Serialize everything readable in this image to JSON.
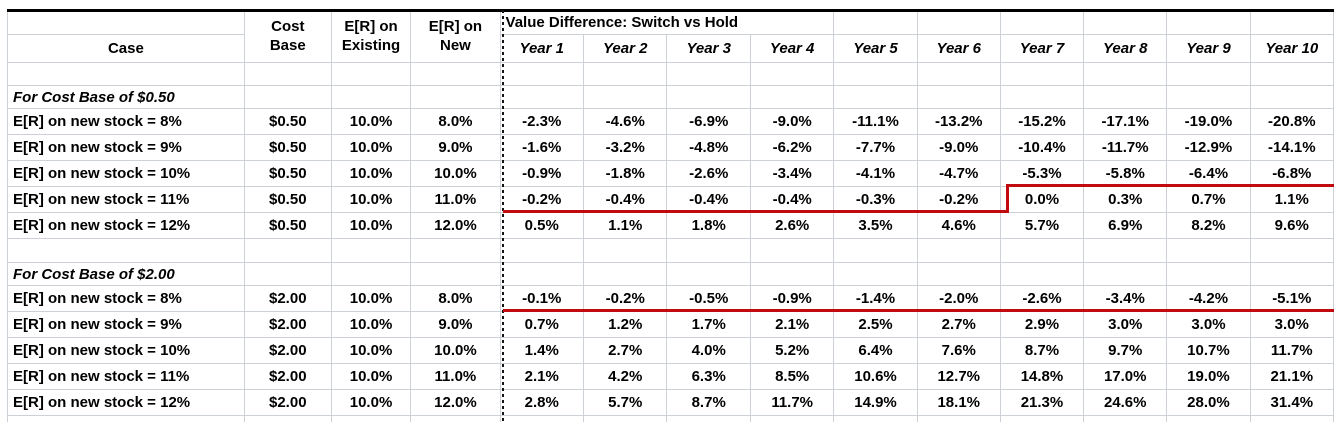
{
  "header": {
    "case_label": "Case",
    "merged": [
      {
        "line1": "Cost",
        "line2": "Base"
      },
      {
        "line1": "E[R] on",
        "line2": "Existing"
      },
      {
        "line1": "E[R] on",
        "line2": "New"
      }
    ],
    "value_diff_title": "Value Difference: Switch vs Hold",
    "years": [
      "Year 1",
      "Year 2",
      "Year 3",
      "Year 4",
      "Year 5",
      "Year 6",
      "Year 7",
      "Year 8",
      "Year 9",
      "Year 10"
    ]
  },
  "sections": [
    {
      "title": "For Cost Base of $0.50",
      "rows": [
        {
          "case": "E[R] on new stock = 8%",
          "cost_base": "$0.50",
          "er_existing": "10.0%",
          "er_new": "8.0%",
          "values": [
            "-2.3%",
            "-4.6%",
            "-6.9%",
            "-9.0%",
            "-11.1%",
            "-13.2%",
            "-15.2%",
            "-17.1%",
            "-19.0%",
            "-20.8%"
          ]
        },
        {
          "case": "E[R] on new stock = 9%",
          "cost_base": "$0.50",
          "er_existing": "10.0%",
          "er_new": "9.0%",
          "values": [
            "-1.6%",
            "-3.2%",
            "-4.8%",
            "-6.2%",
            "-7.7%",
            "-9.0%",
            "-10.4%",
            "-11.7%",
            "-12.9%",
            "-14.1%"
          ]
        },
        {
          "case": "E[R] on new stock = 10%",
          "cost_base": "$0.50",
          "er_existing": "10.0%",
          "er_new": "10.0%",
          "values": [
            "-0.9%",
            "-1.8%",
            "-2.6%",
            "-3.4%",
            "-4.1%",
            "-4.7%",
            "-5.3%",
            "-5.8%",
            "-6.4%",
            "-6.8%"
          ]
        },
        {
          "case": "E[R] on new stock = 11%",
          "cost_base": "$0.50",
          "er_existing": "10.0%",
          "er_new": "11.0%",
          "values": [
            "-0.2%",
            "-0.4%",
            "-0.4%",
            "-0.4%",
            "-0.3%",
            "-0.2%",
            "0.0%",
            "0.3%",
            "0.7%",
            "1.1%"
          ]
        },
        {
          "case": "E[R] on new stock = 12%",
          "cost_base": "$0.50",
          "er_existing": "10.0%",
          "er_new": "12.0%",
          "values": [
            "0.5%",
            "1.1%",
            "1.8%",
            "2.6%",
            "3.5%",
            "4.6%",
            "5.7%",
            "6.9%",
            "8.2%",
            "9.6%"
          ]
        }
      ]
    },
    {
      "title": "For Cost Base of $2.00",
      "rows": [
        {
          "case": "E[R] on new stock = 8%",
          "cost_base": "$2.00",
          "er_existing": "10.0%",
          "er_new": "8.0%",
          "values": [
            "-0.1%",
            "-0.2%",
            "-0.5%",
            "-0.9%",
            "-1.4%",
            "-2.0%",
            "-2.6%",
            "-3.4%",
            "-4.2%",
            "-5.1%"
          ]
        },
        {
          "case": "E[R] on new stock = 9%",
          "cost_base": "$2.00",
          "er_existing": "10.0%",
          "er_new": "9.0%",
          "values": [
            "0.7%",
            "1.2%",
            "1.7%",
            "2.1%",
            "2.5%",
            "2.7%",
            "2.9%",
            "3.0%",
            "3.0%",
            "3.0%"
          ]
        },
        {
          "case": "E[R] on new stock = 10%",
          "cost_base": "$2.00",
          "er_existing": "10.0%",
          "er_new": "10.0%",
          "values": [
            "1.4%",
            "2.7%",
            "4.0%",
            "5.2%",
            "6.4%",
            "7.6%",
            "8.7%",
            "9.7%",
            "10.7%",
            "11.7%"
          ]
        },
        {
          "case": "E[R] on new stock = 11%",
          "cost_base": "$2.00",
          "er_existing": "10.0%",
          "er_new": "11.0%",
          "values": [
            "2.1%",
            "4.2%",
            "6.3%",
            "8.5%",
            "10.6%",
            "12.7%",
            "14.8%",
            "17.0%",
            "19.0%",
            "21.1%"
          ]
        },
        {
          "case": "E[R] on new stock = 12%",
          "cost_base": "$2.00",
          "er_existing": "10.0%",
          "er_new": "12.0%",
          "values": [
            "2.8%",
            "5.7%",
            "8.7%",
            "11.7%",
            "14.9%",
            "18.1%",
            "21.3%",
            "24.6%",
            "28.0%",
            "31.4%"
          ]
        }
      ]
    }
  ],
  "highlights": {
    "red_line_color": "#c00a10",
    "grid_color": "#ccd1d8",
    "top_border_color": "#000000"
  }
}
